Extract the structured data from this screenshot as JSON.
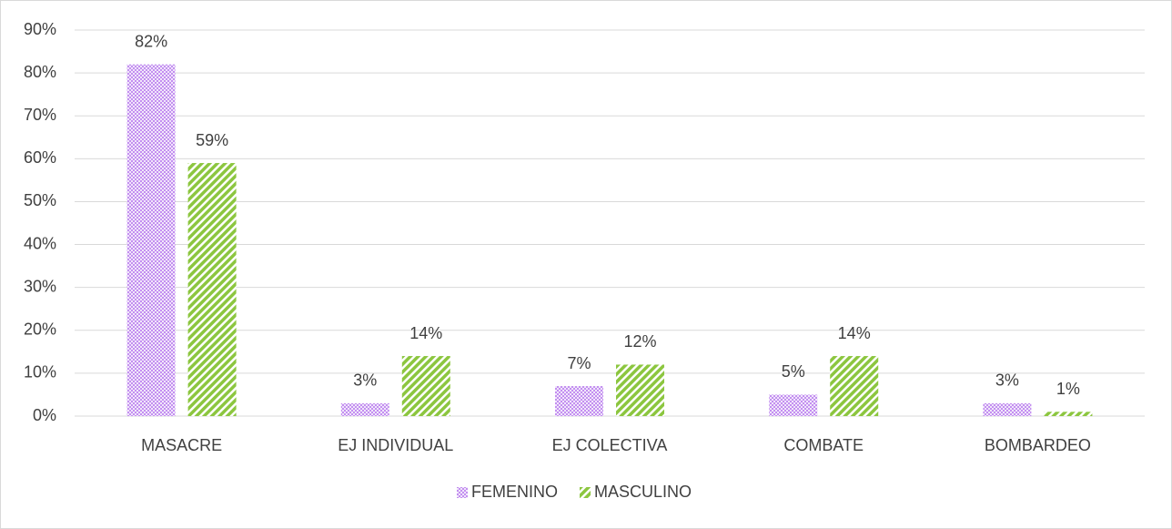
{
  "chart_data": {
    "type": "bar",
    "categories": [
      "MASACRE",
      "EJ INDIVIDUAL",
      "EJ COLECTIVA",
      "COMBATE",
      "BOMBARDEO"
    ],
    "series": [
      {
        "name": "FEMENINO",
        "color": "#c38ff0",
        "values": [
          82,
          3,
          7,
          5,
          3
        ],
        "value_labels": [
          "82%",
          "3%",
          "7%",
          "5%",
          "3%"
        ]
      },
      {
        "name": "MASCULINO",
        "color": "#8cc63f",
        "values": [
          59,
          14,
          12,
          14,
          1
        ],
        "value_labels": [
          "59%",
          "14%",
          "12%",
          "14%",
          "1%"
        ]
      }
    ],
    "ylim": [
      0,
      90
    ],
    "yticks": [
      {
        "value": 0,
        "label": "0%"
      },
      {
        "value": 10,
        "label": "10%"
      },
      {
        "value": 20,
        "label": "20%"
      },
      {
        "value": 30,
        "label": "30%"
      },
      {
        "value": 40,
        "label": "40%"
      },
      {
        "value": 50,
        "label": "50%"
      },
      {
        "value": 60,
        "label": "60%"
      },
      {
        "value": 70,
        "label": "70%"
      },
      {
        "value": 80,
        "label": "80%"
      },
      {
        "value": 90,
        "label": "90%"
      }
    ],
    "grid": true,
    "legend": "bottom"
  }
}
